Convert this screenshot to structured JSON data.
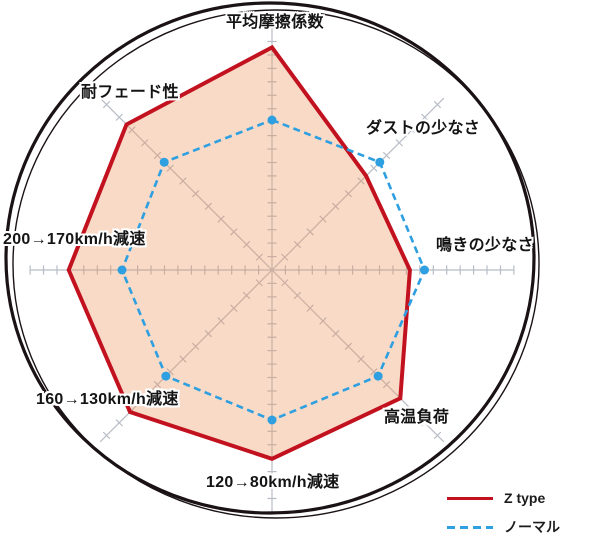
{
  "chart_data": {
    "type": "radar",
    "title": "",
    "axes": [
      "平均摩擦係数",
      "ダストの少なさ",
      "鳴きの少なさ",
      "高温負荷",
      "120→80km/h減速",
      "160→130km/h減速",
      "200→170km/h減速",
      "耐フェード性"
    ],
    "scale": {
      "min": 0,
      "max": 10
    },
    "series": [
      {
        "name": "Z type",
        "style": "solid",
        "color": "#c3121f",
        "fill": "rgba(235,148,92,0.35)",
        "values": [
          9.2,
          5.5,
          5.7,
          7.5,
          7.8,
          8.3,
          8.4,
          8.5
        ]
      },
      {
        "name": "ノーマル",
        "style": "dashed",
        "color": "#2e9fe0",
        "fill": "none",
        "values": [
          6.2,
          6.3,
          6.3,
          6.2,
          6.2,
          6.2,
          6.2,
          6.3
        ]
      }
    ],
    "grid": {
      "axis_color": "#b7bcc6",
      "tick_style": "cross"
    },
    "outer_ring_color": "#1a1214",
    "legend_position": "bottom-right"
  }
}
